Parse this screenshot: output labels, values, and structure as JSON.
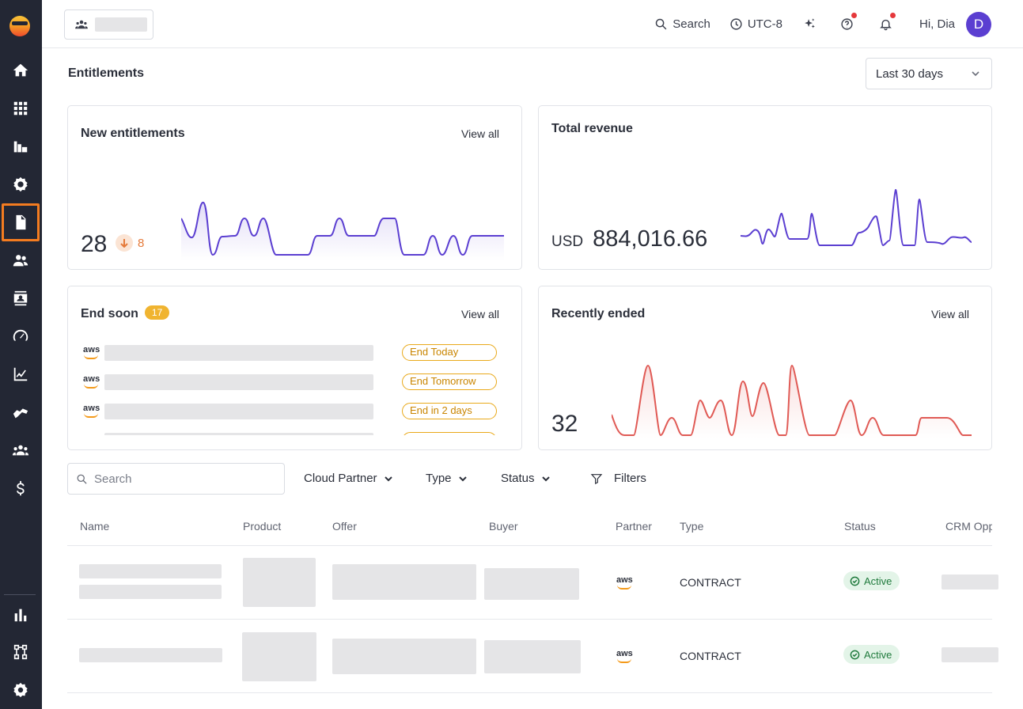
{
  "topbar": {
    "search_label": "Search",
    "timezone_label": "UTC-8",
    "greeting": "Hi, Dia",
    "avatar_initial": "D"
  },
  "page": {
    "title": "Entitlements",
    "date_range": "Last 30 days"
  },
  "cards": {
    "new_entitlements": {
      "title": "New entitlements",
      "view_all": "View all",
      "value": "28",
      "delta": "8",
      "trend_color": "#5b3fd1"
    },
    "total_revenue": {
      "title": "Total revenue",
      "currency": "USD",
      "value": "884,016.66",
      "trend_color": "#5b3fd1"
    },
    "end_soon": {
      "title": "End soon",
      "count": "17",
      "view_all": "View all",
      "items": [
        {
          "partner": "aws",
          "status": "End Today"
        },
        {
          "partner": "aws",
          "status": "End Tomorrow"
        },
        {
          "partner": "aws",
          "status": "End in 2 days"
        }
      ]
    },
    "recently_ended": {
      "title": "Recently ended",
      "view_all": "View all",
      "value": "32",
      "trend_color": "#e05a55"
    }
  },
  "filters": {
    "search_placeholder": "Search",
    "cloud_partner": "Cloud Partner",
    "type": "Type",
    "status": "Status",
    "filters": "Filters"
  },
  "table": {
    "columns": [
      "Name",
      "Product",
      "Offer",
      "Buyer",
      "Partner",
      "Type",
      "Status",
      "CRM Opp"
    ],
    "rows": [
      {
        "partner": "aws",
        "type": "CONTRACT",
        "status": "Active"
      },
      {
        "partner": "aws",
        "type": "CONTRACT",
        "status": "Active"
      }
    ]
  },
  "sidebar": {
    "items": [
      "home-icon",
      "apps-grid-icon",
      "listings-icon",
      "settings-gear-icon",
      "document-icon",
      "users-icon",
      "contacts-icon",
      "speedometer-icon",
      "analytics-icon",
      "handshake-icon",
      "team-icon",
      "dollar-icon"
    ],
    "bottom_items": [
      "bar-chart-icon",
      "integration-flow-icon",
      "settings-icon"
    ],
    "active_item": "document-icon",
    "active_color": "#f47c20"
  }
}
